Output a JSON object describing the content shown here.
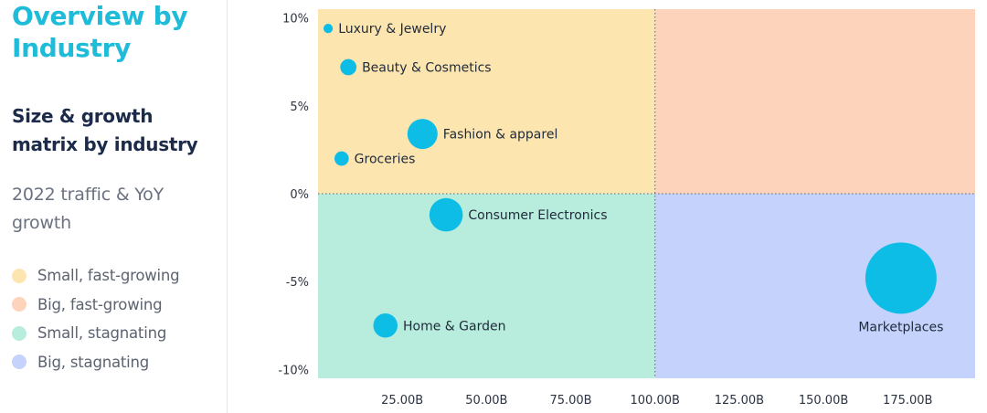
{
  "sidebar": {
    "title": "Overview by Industry",
    "subtitle": "Size & growth matrix by industry",
    "caption": "2022 traffic & YoY growth",
    "legend": [
      {
        "label": "Small, fast-growing",
        "color": "#fde5b0"
      },
      {
        "label": "Big, fast-growing",
        "color": "#fdd3bc"
      },
      {
        "label": "Small, stagnating",
        "color": "#b8ecdd"
      },
      {
        "label": "Big, stagnating",
        "color": "#c5d2fb"
      }
    ]
  },
  "chart_data": {
    "type": "scatter",
    "title": "Size & growth matrix by industry",
    "xlabel": "",
    "ylabel": "",
    "xlim": [
      0,
      195
    ],
    "ylim": [
      -10.5,
      10.5
    ],
    "x_unit": "B",
    "y_unit": "%",
    "x_ticks": [
      25,
      50,
      75,
      100,
      125,
      150,
      175
    ],
    "x_tick_labels": [
      "25.00B",
      "50.00B",
      "75.00B",
      "100.00B",
      "125.00B",
      "150.00B",
      "175.00B"
    ],
    "y_ticks": [
      10,
      5,
      0,
      -5,
      -10
    ],
    "y_tick_labels": [
      "10%",
      "5%",
      "0%",
      "-5%",
      "-10%"
    ],
    "quadrant_divider": {
      "x": 100,
      "y": 0
    },
    "quadrant_colors": {
      "top_left": "#fde5b0",
      "top_right": "#fdd3bc",
      "bottom_left": "#b8ecdd",
      "bottom_right": "#c5d2fb"
    },
    "bubble_color": "#0ebde6",
    "grid": false,
    "points": [
      {
        "label": "Luxury & Jewelry",
        "x": 3,
        "y": 9.4,
        "size": 3,
        "label_pos": "right"
      },
      {
        "label": "Beauty & Cosmetics",
        "x": 9,
        "y": 7.2,
        "size": 9,
        "label_pos": "right"
      },
      {
        "label": "Fashion & apparel",
        "x": 31,
        "y": 3.4,
        "size": 31,
        "label_pos": "right"
      },
      {
        "label": "Groceries",
        "x": 7,
        "y": 2.0,
        "size": 7,
        "label_pos": "right"
      },
      {
        "label": "Consumer Electronics",
        "x": 38,
        "y": -1.2,
        "size": 38,
        "label_pos": "right"
      },
      {
        "label": "Home & Garden",
        "x": 20,
        "y": -7.5,
        "size": 20,
        "label_pos": "right"
      },
      {
        "label": "Marketplaces",
        "x": 173,
        "y": -4.8,
        "size": 173,
        "label_pos": "below"
      }
    ]
  }
}
